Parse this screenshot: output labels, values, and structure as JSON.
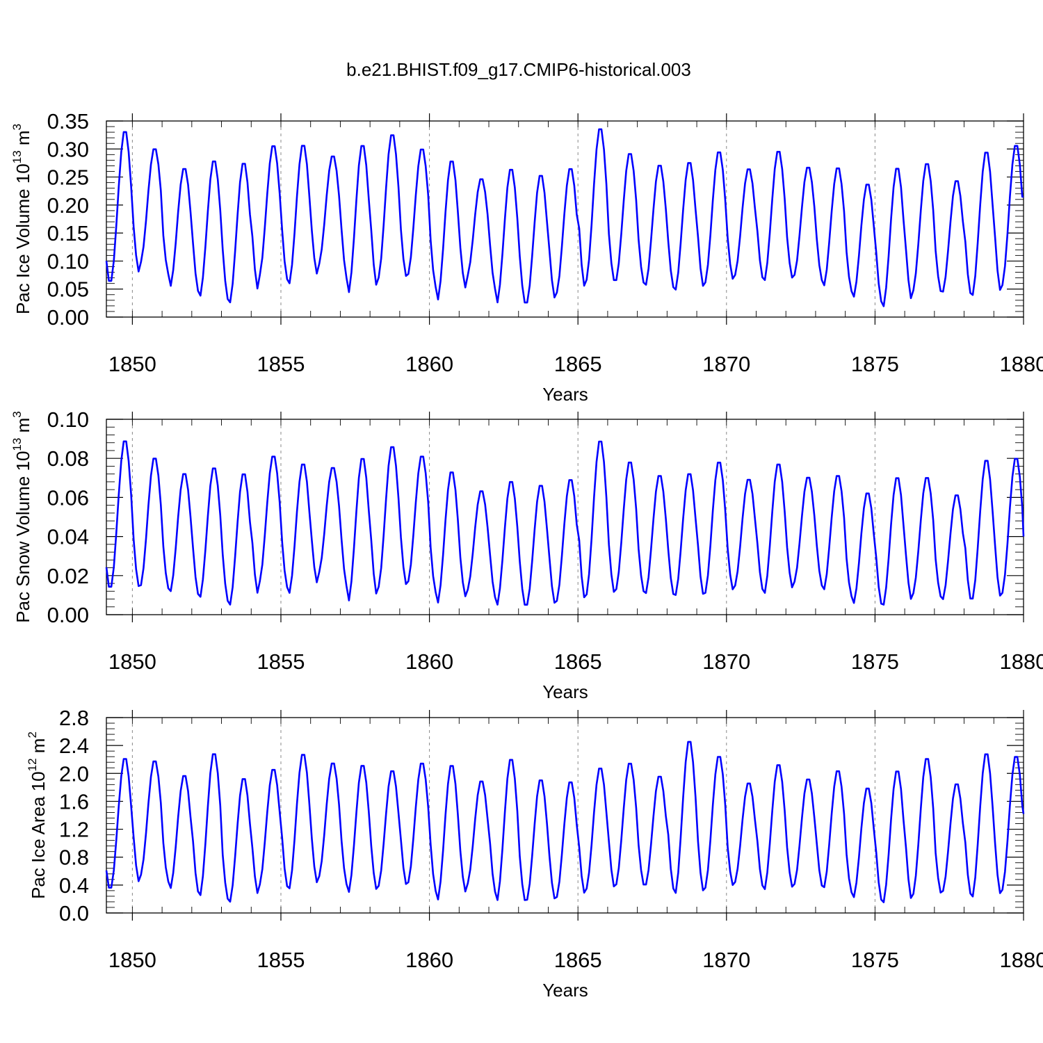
{
  "figure_title": "b.e21.BHIST.f09_g17.CMIP6-historical.003",
  "colors": {
    "series": "#0000ff",
    "axes": "#000000",
    "grid": "#888888"
  },
  "chart_data": [
    {
      "type": "line",
      "ylabel_main": "Pac Ice Volume 10",
      "ylabel_exp": "13",
      "ylabel_unit": " m",
      "ylabel_unit_exp": "3",
      "xlabel": "Years",
      "xlim": [
        1849.125,
        1880.0
      ],
      "ylim": [
        0.0,
        0.35
      ],
      "yticks": [
        "0.00",
        "0.05",
        "0.10",
        "0.15",
        "0.20",
        "0.25",
        "0.30",
        "0.35"
      ],
      "xticks": [
        "1850",
        "1855",
        "1860",
        "1865",
        "1870",
        "1875",
        "1880"
      ],
      "grid": "vertical dashed at x ticks",
      "series": [
        {
          "name": "Pac Ice Volume",
          "years": [
            1849,
            1850,
            1851,
            1852,
            1853,
            1854,
            1855,
            1856,
            1857,
            1858,
            1859,
            1860,
            1861,
            1862,
            1863,
            1864,
            1865,
            1866,
            1867,
            1868,
            1869,
            1870,
            1871,
            1872,
            1873,
            1874,
            1875,
            1876,
            1877,
            1878,
            1879
          ],
          "min": [
            0.06,
            0.095,
            0.052,
            0.034,
            0.022,
            0.071,
            0.056,
            0.092,
            0.04,
            0.066,
            0.073,
            0.027,
            0.072,
            0.022,
            0.022,
            0.04,
            0.062,
            0.062,
            0.054,
            0.045,
            0.058,
            0.072,
            0.062,
            0.072,
            0.053,
            0.033,
            0.015,
            0.044,
            0.042,
            0.035,
            0.053
          ],
          "max": [
            0.335,
            0.303,
            0.268,
            0.282,
            0.278,
            0.309,
            0.31,
            0.29,
            0.31,
            0.329,
            0.303,
            0.282,
            0.249,
            0.267,
            0.256,
            0.268,
            0.34,
            0.295,
            0.274,
            0.279,
            0.298,
            0.267,
            0.299,
            0.27,
            0.269,
            0.24,
            0.269,
            0.277,
            0.246,
            0.298,
            0.31
          ],
          "end_value": 0.215
        }
      ]
    },
    {
      "type": "line",
      "ylabel_main": "Pac Snow Volume 10",
      "ylabel_exp": "13",
      "ylabel_unit": " m",
      "ylabel_unit_exp": "3",
      "xlabel": "Years",
      "xlim": [
        1849.125,
        1880.0
      ],
      "ylim": [
        0.0,
        0.1
      ],
      "yticks": [
        "0.00",
        "0.02",
        "0.04",
        "0.06",
        "0.08",
        "0.10"
      ],
      "xticks": [
        "1850",
        "1855",
        "1860",
        "1865",
        "1870",
        "1875",
        "1880"
      ],
      "grid": "vertical dashed at x ticks",
      "series": [
        {
          "name": "Pac Snow Volume",
          "years": [
            1849,
            1850,
            1851,
            1852,
            1853,
            1854,
            1855,
            1856,
            1857,
            1858,
            1859,
            1860,
            1861,
            1862,
            1863,
            1864,
            1865,
            1866,
            1867,
            1868,
            1869,
            1870,
            1871,
            1872,
            1873,
            1874,
            1875,
            1876,
            1877,
            1878,
            1879
          ],
          "min": [
            0.013,
            0.014,
            0.011,
            0.008,
            0.004,
            0.016,
            0.01,
            0.021,
            0.006,
            0.013,
            0.016,
            0.005,
            0.012,
            0.004,
            0.004,
            0.006,
            0.009,
            0.012,
            0.01,
            0.009,
            0.01,
            0.014,
            0.01,
            0.016,
            0.012,
            0.005,
            0.004,
            0.01,
            0.007,
            0.007,
            0.01
          ],
          "max": [
            0.09,
            0.081,
            0.073,
            0.076,
            0.073,
            0.082,
            0.078,
            0.076,
            0.081,
            0.087,
            0.082,
            0.074,
            0.064,
            0.069,
            0.067,
            0.07,
            0.09,
            0.079,
            0.072,
            0.073,
            0.079,
            0.07,
            0.078,
            0.071,
            0.072,
            0.063,
            0.071,
            0.071,
            0.062,
            0.08,
            0.081
          ],
          "end_value": 0.04
        }
      ]
    },
    {
      "type": "line",
      "ylabel_main": "Pac Ice Area 10",
      "ylabel_exp": "12",
      "ylabel_unit": " m",
      "ylabel_unit_exp": "2",
      "xlabel": "Years",
      "xlim": [
        1849.125,
        1880.0
      ],
      "ylim": [
        0.0,
        2.8
      ],
      "yticks": [
        "0.0",
        "0.4",
        "0.8",
        "1.2",
        "1.6",
        "2.0",
        "2.4",
        "2.8"
      ],
      "xticks": [
        "1850",
        "1855",
        "1860",
        "1865",
        "1870",
        "1875",
        "1880"
      ],
      "grid": "vertical dashed at x ticks",
      "series": [
        {
          "name": "Pac Ice Area",
          "years": [
            1849,
            1850,
            1851,
            1852,
            1853,
            1854,
            1855,
            1856,
            1857,
            1858,
            1859,
            1860,
            1861,
            1862,
            1863,
            1864,
            1865,
            1866,
            1867,
            1868,
            1869,
            1870,
            1871,
            1872,
            1873,
            1874,
            1875,
            1876,
            1877,
            1878,
            1879
          ],
          "min": [
            0.33,
            0.52,
            0.33,
            0.22,
            0.13,
            0.38,
            0.32,
            0.5,
            0.27,
            0.36,
            0.41,
            0.16,
            0.4,
            0.15,
            0.16,
            0.2,
            0.32,
            0.38,
            0.38,
            0.25,
            0.33,
            0.42,
            0.31,
            0.39,
            0.34,
            0.2,
            0.12,
            0.24,
            0.29,
            0.2,
            0.3
          ],
          "max": [
            2.24,
            2.2,
            1.99,
            2.31,
            1.95,
            2.08,
            2.3,
            2.17,
            2.14,
            2.06,
            2.17,
            2.14,
            1.91,
            2.23,
            1.93,
            1.9,
            2.1,
            2.17,
            1.98,
            2.49,
            2.27,
            1.88,
            2.15,
            1.94,
            2.06,
            1.81,
            2.06,
            2.24,
            1.87,
            2.31,
            2.27
          ],
          "end_value": 1.42
        }
      ]
    }
  ]
}
